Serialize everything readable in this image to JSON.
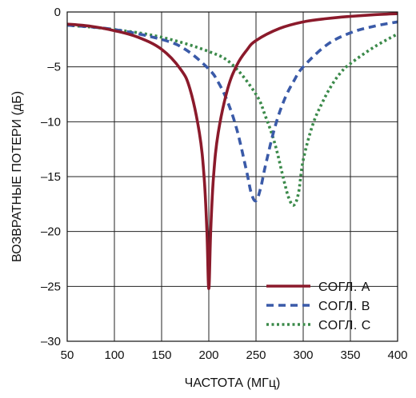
{
  "chart_data": {
    "type": "line",
    "title": "",
    "xlabel": "ЧАСТОТА (МГц)",
    "ylabel": "ВОЗВРАТНЫЕ ПОТЕРИ (дБ)",
    "xlim": [
      50,
      400
    ],
    "ylim": [
      -30,
      0
    ],
    "xticks": [
      50,
      100,
      150,
      200,
      250,
      300,
      350,
      400
    ],
    "yticks": [
      0,
      -5,
      -10,
      -15,
      -20,
      -25,
      -30
    ],
    "grid": true,
    "legend_position": "bottom-right",
    "series": [
      {
        "name": "СОГЛ. А",
        "color": "#8b1a2b",
        "style": "solid",
        "x": [
          50,
          75,
          100,
          125,
          150,
          170,
          180,
          190,
          195,
          198,
          200,
          202,
          205,
          210,
          220,
          230,
          240,
          250,
          275,
          300,
          325,
          350,
          375,
          400
        ],
        "y": [
          -1.1,
          -1.3,
          -1.7,
          -2.3,
          -3.4,
          -5.2,
          -7.0,
          -11.0,
          -15.0,
          -20.0,
          -25.2,
          -20.0,
          -15.0,
          -11.0,
          -7.0,
          -4.8,
          -3.5,
          -2.6,
          -1.5,
          -0.9,
          -0.6,
          -0.4,
          -0.25,
          -0.15
        ]
      },
      {
        "name": "СОГЛ. В",
        "color": "#3a5aa8",
        "style": "dashed",
        "x": [
          50,
          100,
          150,
          175,
          200,
          210,
          220,
          230,
          240,
          245,
          250,
          255,
          260,
          270,
          280,
          290,
          300,
          325,
          350,
          375,
          400
        ],
        "y": [
          -1.2,
          -1.6,
          -2.5,
          -3.4,
          -5.2,
          -6.4,
          -8.2,
          -10.8,
          -14.5,
          -16.5,
          -17.2,
          -16.0,
          -14.0,
          -10.5,
          -8.0,
          -6.3,
          -5.0,
          -3.0,
          -1.9,
          -1.3,
          -0.9
        ]
      },
      {
        "name": "СОГЛ. С",
        "color": "#3b8a4a",
        "style": "dotted",
        "x": [
          50,
          100,
          150,
          200,
          225,
          250,
          260,
          270,
          280,
          285,
          290,
          295,
          300,
          310,
          320,
          330,
          340,
          350,
          375,
          400
        ],
        "y": [
          -1.2,
          -1.6,
          -2.3,
          -3.6,
          -4.8,
          -7.5,
          -9.5,
          -12.0,
          -15.5,
          -17.0,
          -17.6,
          -16.5,
          -13.5,
          -10.3,
          -8.3,
          -6.7,
          -5.5,
          -4.7,
          -3.2,
          -2.0
        ]
      }
    ]
  }
}
